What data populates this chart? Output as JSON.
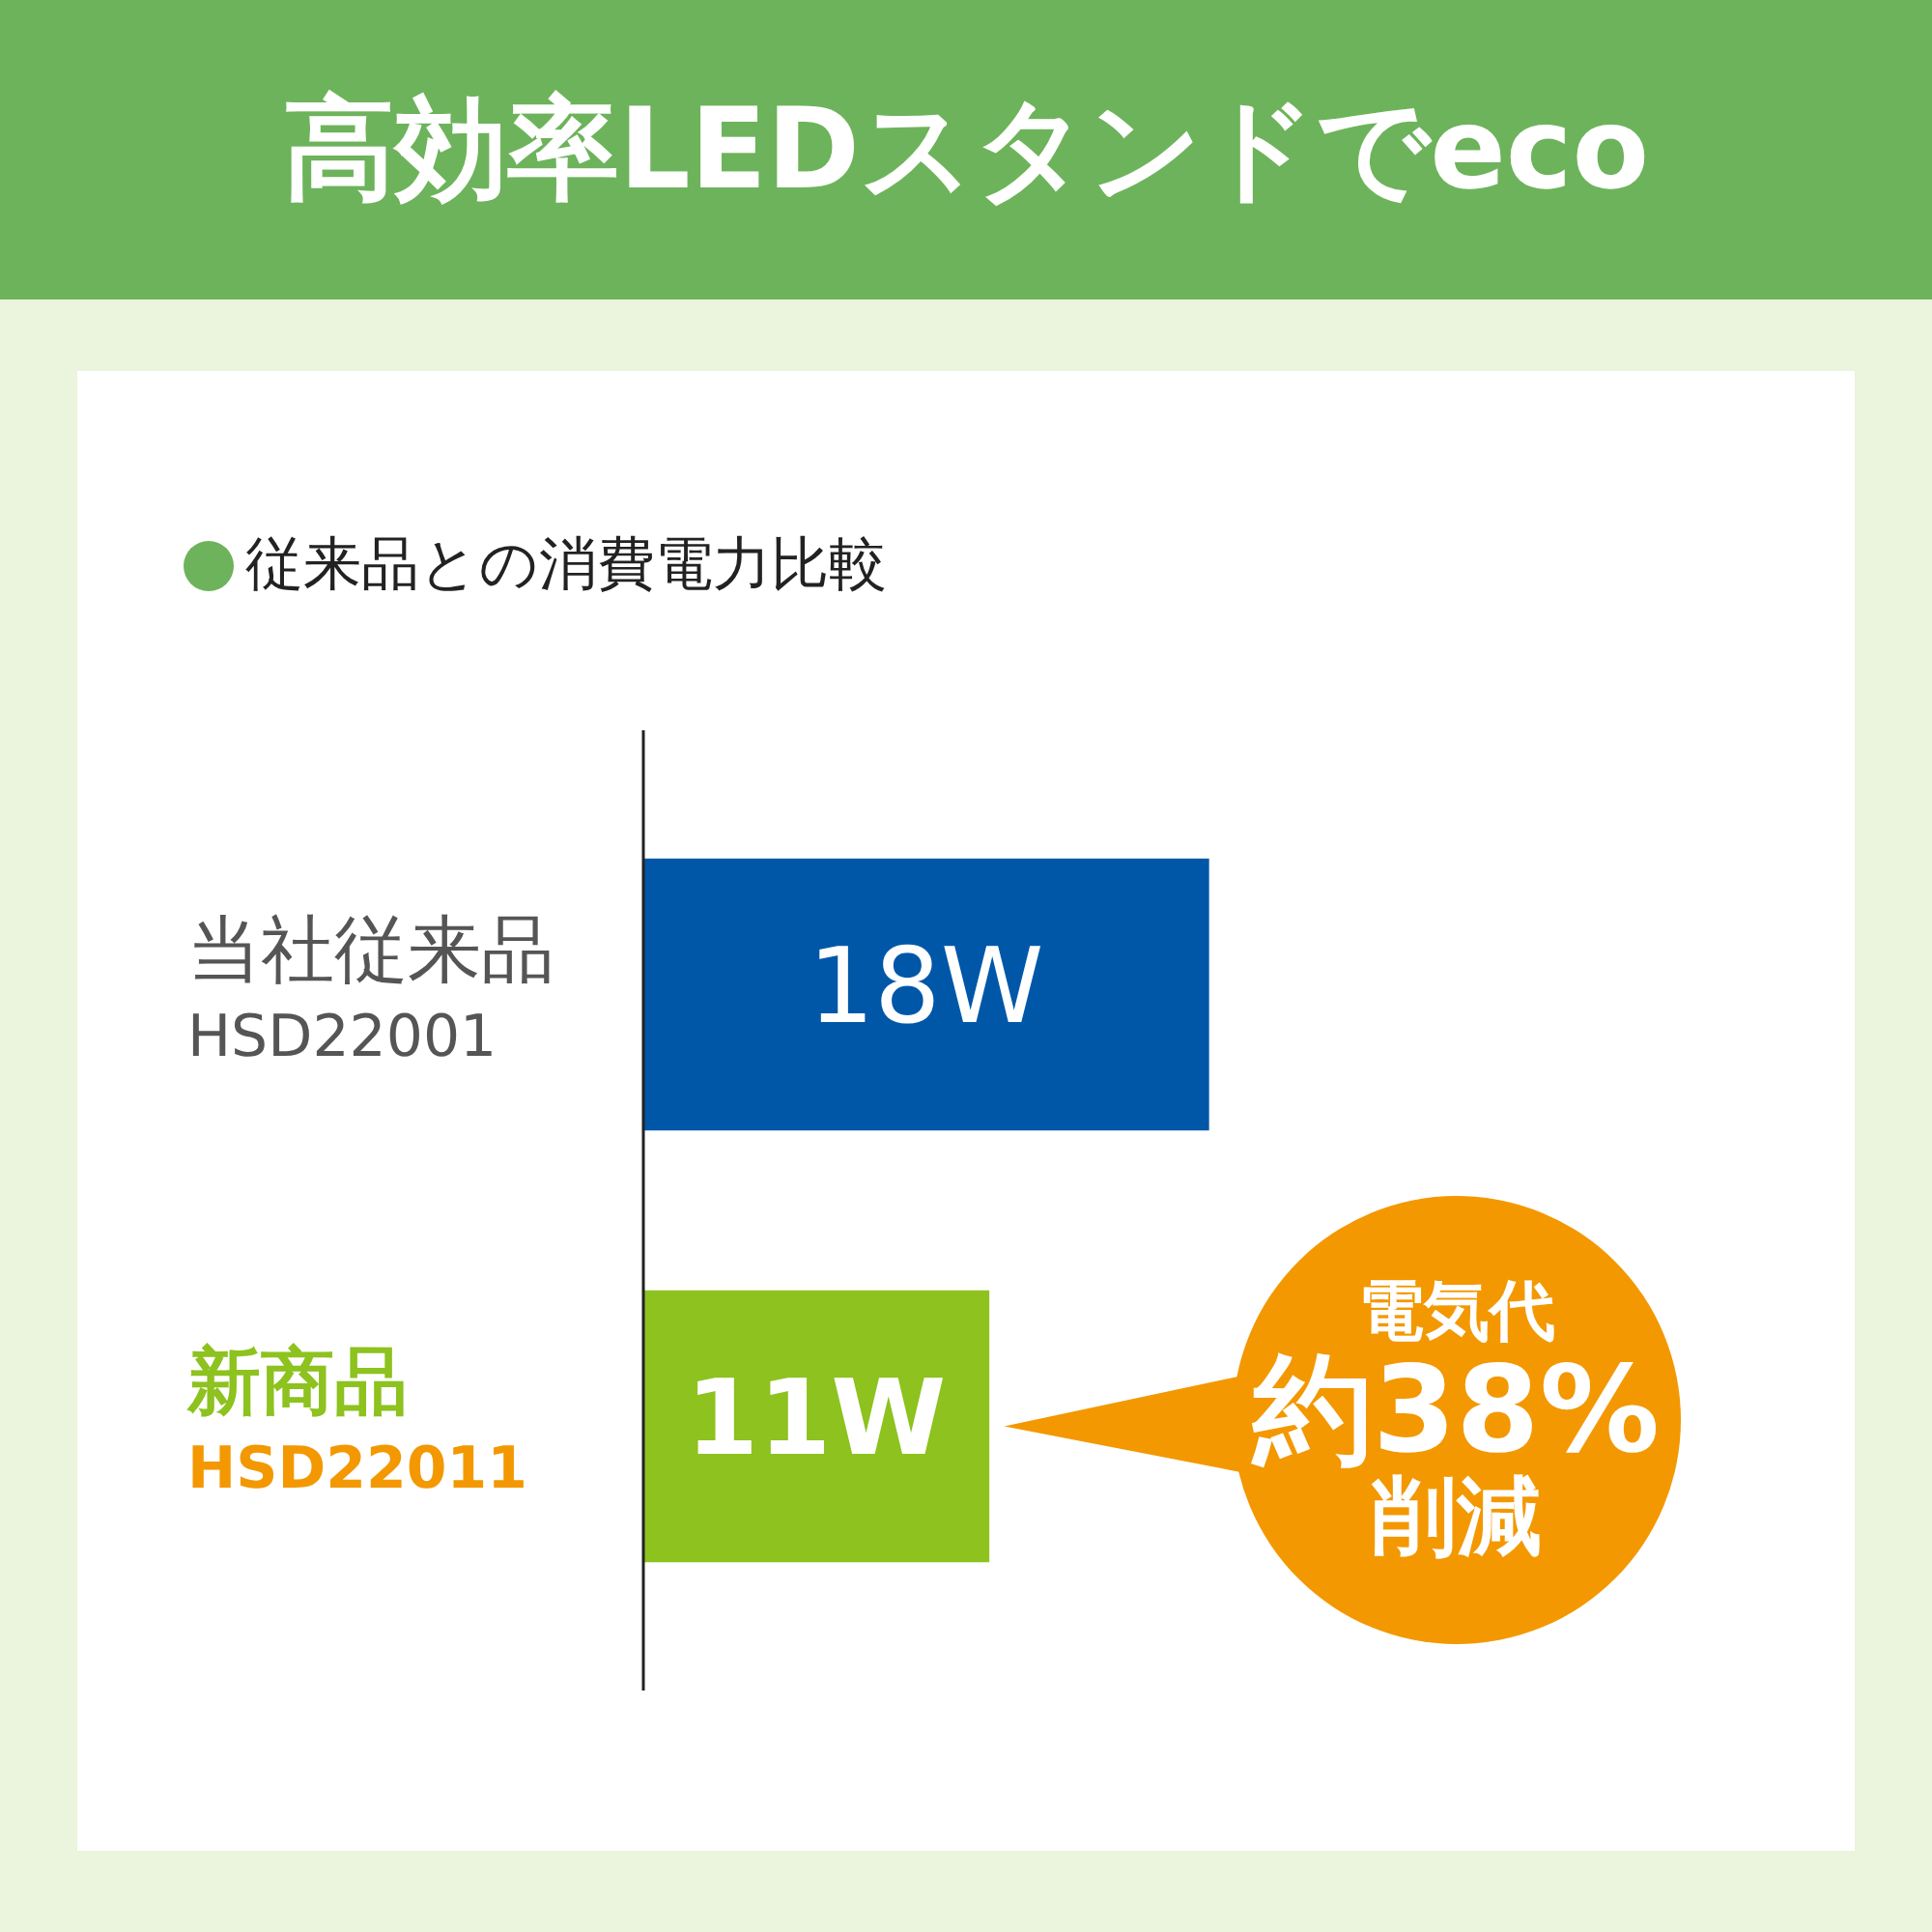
{
  "chart_data": {
    "type": "bar",
    "orientation": "horizontal",
    "title": "高効率LEDスタンドでeco",
    "subtitle": "従来品との消費電力比較",
    "categories": [
      "当社従来品\nHSD22001",
      "新商品\nHSD22011"
    ],
    "values": [
      18,
      11
    ],
    "colors": [
      "#0057a8",
      "#8dc21f"
    ],
    "value_labels": [
      "18W",
      "11W"
    ],
    "legend": false,
    "tick_labels": "y",
    "annotations": [
      "電気代",
      "約38%",
      "削減"
    ]
  }
}
